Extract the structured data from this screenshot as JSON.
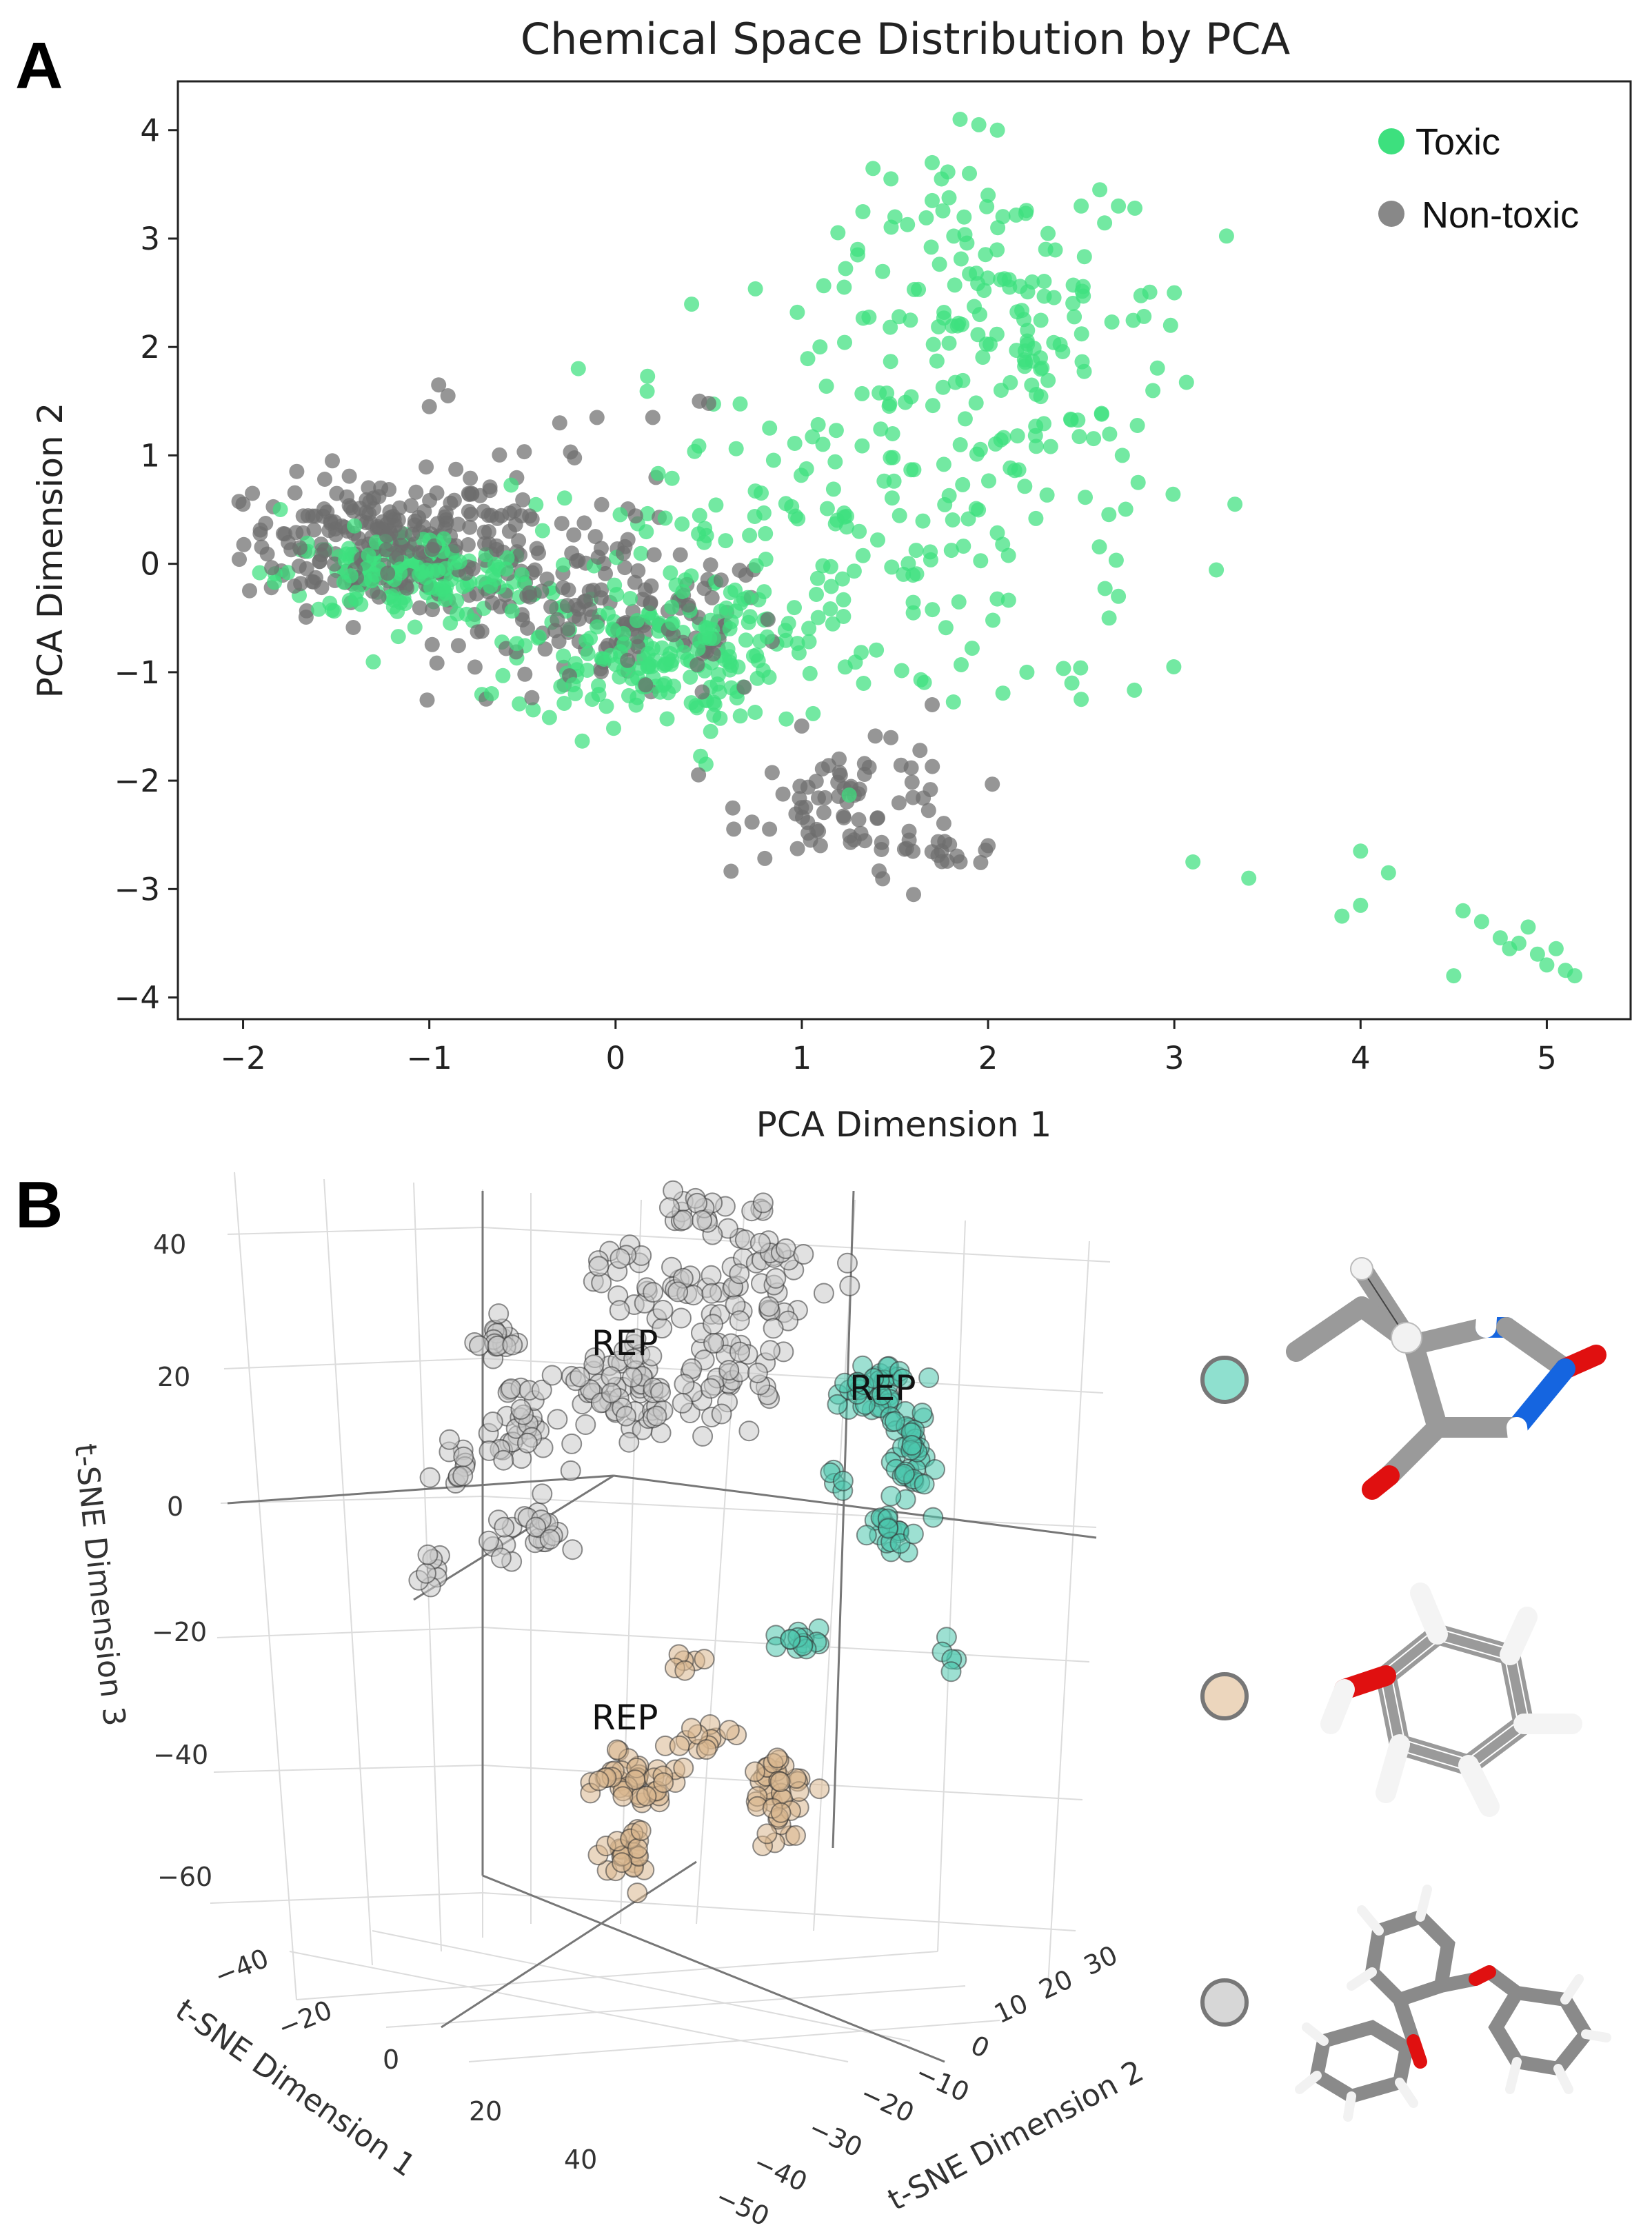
{
  "chart_data": [
    {
      "panel": "A",
      "type": "scatter",
      "title": "Chemical Space Distribution by PCA",
      "xlabel": "PCA Dimension 1",
      "ylabel": "PCA Dimension 2",
      "xlim": [
        -2.35,
        5.45
      ],
      "ylim": [
        -4.2,
        4.45
      ],
      "xticks": [
        -2,
        -1,
        0,
        1,
        2,
        3,
        4,
        5
      ],
      "yticks": [
        -4,
        -3,
        -2,
        -1,
        0,
        1,
        2,
        3,
        4
      ],
      "xtick_labels": [
        "−2",
        "−1",
        "0",
        "1",
        "2",
        "3",
        "4",
        "5"
      ],
      "ytick_labels": [
        "−4",
        "−3",
        "−2",
        "−1",
        "0",
        "1",
        "2",
        "3",
        "4"
      ],
      "legend": {
        "position": "top-right",
        "entries": [
          "Toxic",
          "Non-toxic"
        ]
      },
      "series": [
        {
          "name": "Toxic",
          "color": "#3de07e",
          "clusters": [
            {
              "cx": -1.1,
              "cy": -0.1,
              "sx": 0.35,
              "sy": 0.2,
              "n": 170
            },
            {
              "cx": 0.15,
              "cy": -0.85,
              "sx": 0.35,
              "sy": 0.3,
              "n": 160
            },
            {
              "cx": 0.9,
              "cy": -0.3,
              "sx": 0.7,
              "sy": 0.7,
              "n": 110
            },
            {
              "cx": 2.1,
              "cy": 2.3,
              "sx": 0.45,
              "sy": 0.6,
              "n": 130
            },
            {
              "cx": 1.4,
              "cy": 0.8,
              "sx": 0.7,
              "sy": 0.8,
              "n": 90
            },
            {
              "cx": 2.2,
              "cy": 0.3,
              "sx": 0.4,
              "sy": 0.9,
              "n": 30
            }
          ],
          "points": [
            [
              1.85,
              4.1
            ],
            [
              1.95,
              4.05
            ],
            [
              2.05,
              4.0
            ],
            [
              1.9,
              3.6
            ],
            [
              1.7,
              3.7
            ],
            [
              1.75,
              3.55
            ],
            [
              1.7,
              3.35
            ],
            [
              2.6,
              3.45
            ],
            [
              2.5,
              3.3
            ],
            [
              2.7,
              3.3
            ],
            [
              1.3,
              2.9
            ],
            [
              1.3,
              2.85
            ],
            [
              3.0,
              2.5
            ],
            [
              2.98,
              2.2
            ],
            [
              2.0,
              3.4
            ],
            [
              1.5,
              3.2
            ],
            [
              3.1,
              -2.75
            ],
            [
              3.4,
              -2.9
            ],
            [
              3.9,
              -3.25
            ],
            [
              4.0,
              -2.65
            ],
            [
              4.15,
              -2.85
            ],
            [
              4.0,
              -3.15
            ],
            [
              4.5,
              -3.8
            ],
            [
              4.55,
              -3.2
            ],
            [
              4.65,
              -3.3
            ],
            [
              4.75,
              -3.45
            ],
            [
              4.85,
              -3.5
            ],
            [
              4.9,
              -3.35
            ],
            [
              4.95,
              -3.6
            ],
            [
              5.0,
              -3.7
            ],
            [
              5.1,
              -3.75
            ],
            [
              5.15,
              -3.8
            ],
            [
              4.8,
              -3.55
            ],
            [
              5.05,
              -3.55
            ],
            [
              2.5,
              -1.25
            ],
            [
              2.45,
              -1.1
            ],
            [
              2.7,
              -0.3
            ],
            [
              2.65,
              -0.5
            ],
            [
              -0.2,
              1.8
            ],
            [
              -1.8,
              0.5
            ]
          ]
        },
        {
          "name": "Non-toxic",
          "color": "#6e6e6e",
          "clusters": [
            {
              "cx": -1.3,
              "cy": 0.2,
              "sx": 0.35,
              "sy": 0.3,
              "n": 200
            },
            {
              "cx": -0.6,
              "cy": 0.1,
              "sx": 0.4,
              "sy": 0.4,
              "n": 110
            },
            {
              "cx": 0.1,
              "cy": -0.6,
              "sx": 0.4,
              "sy": 0.35,
              "n": 120
            },
            {
              "cx": 1.3,
              "cy": -2.2,
              "sx": 0.3,
              "sy": 0.25,
              "n": 70
            },
            {
              "cx": 1.7,
              "cy": -2.7,
              "sx": 0.2,
              "sy": 0.1,
              "n": 15
            }
          ],
          "points": [
            [
              -0.95,
              1.65
            ],
            [
              -0.9,
              1.55
            ],
            [
              -1.0,
              1.45
            ],
            [
              0.45,
              1.5
            ],
            [
              0.5,
              1.48
            ],
            [
              1.6,
              -3.05
            ],
            [
              1.85,
              -2.75
            ],
            [
              2.0,
              -2.6
            ],
            [
              1.75,
              -2.65
            ],
            [
              -1.95,
              0.65
            ],
            [
              -2.0,
              0.55
            ],
            [
              1.7,
              -1.3
            ],
            [
              0.2,
              1.35
            ],
            [
              -0.3,
              1.3
            ],
            [
              -0.1,
              1.35
            ],
            [
              1.2,
              -1.8
            ],
            [
              1.1,
              -2.6
            ]
          ]
        }
      ]
    },
    {
      "panel": "B",
      "type": "scatter",
      "projection": "3d",
      "xlabel": "t-SNE Dimension 1",
      "ylabel": "t-SNE Dimension 2",
      "zlabel": "t-SNE Dimension 3",
      "xlim": [
        -50,
        50
      ],
      "ylim": [
        -55,
        35
      ],
      "zlim": [
        -65,
        50
      ],
      "xticks": [
        -40,
        -20,
        0,
        20,
        40
      ],
      "yticks": [
        -50,
        -40,
        -30,
        -20,
        -10,
        0,
        10,
        20,
        30
      ],
      "zticks": [
        -60,
        -40,
        -20,
        0,
        20,
        40
      ],
      "xtick_labels": [
        "−40",
        "−20",
        "0",
        "20",
        "40"
      ],
      "ytick_labels": [
        "−50",
        "−40",
        "−30",
        "−20",
        "−10",
        "0",
        "10",
        "20",
        "30"
      ],
      "ztick_labels": [
        "−60",
        "−40",
        "−20",
        "0",
        "20",
        "40"
      ],
      "annotations": [
        "REP",
        "REP",
        "REP"
      ],
      "clusters": [
        {
          "name": "grey",
          "color": "#b4b4b4"
        },
        {
          "name": "teal",
          "color": "#4cc7ad"
        },
        {
          "name": "tan",
          "color": "#d9b68e"
        }
      ],
      "legend_markers": [
        "#8fe0cf",
        "#ecd6bd",
        "#d7d7d7"
      ]
    }
  ],
  "panel_labels": [
    "A",
    "B"
  ]
}
